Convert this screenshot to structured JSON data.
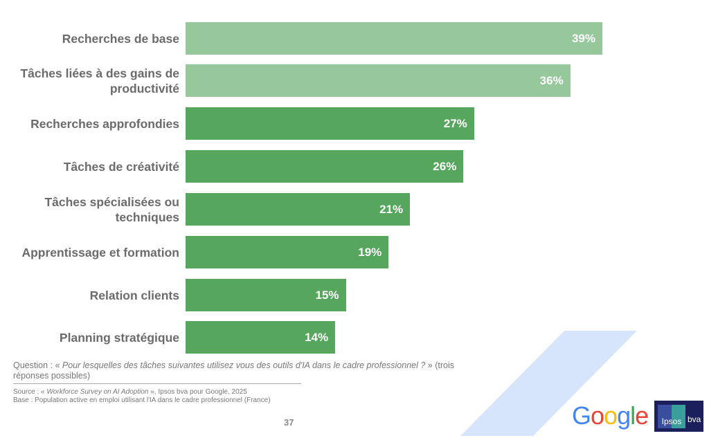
{
  "chart_data": {
    "type": "bar",
    "orientation": "horizontal",
    "categories": [
      "Recherches de base",
      "Tâches liées à des gains de productivité",
      "Recherches approfondies",
      "Tâches de créativité",
      "Tâches spécialisées ou techniques",
      "Apprentissage et formation",
      "Relation clients",
      "Planning stratégique"
    ],
    "values": [
      39,
      36,
      27,
      26,
      21,
      19,
      15,
      14
    ],
    "labels": [
      "39%",
      "36%",
      "27%",
      "26%",
      "21%",
      "19%",
      "15%",
      "14%"
    ],
    "colors": [
      "#97c89b",
      "#97c89b",
      "#57a65d",
      "#57a65d",
      "#57a65d",
      "#57a65d",
      "#57a65d",
      "#57a65d"
    ],
    "xlim": [
      0,
      45
    ],
    "grid": false
  },
  "footer": {
    "question_prefix": "Question : « ",
    "question_italic": "Pour lesquelles des tâches suivantes utilisez vous des outils d'IA dans le cadre professionnel ?",
    "question_suffix": " » (trois réponses possibles)",
    "source_prefix": "Source : « ",
    "source_italic": "Workforce Survey on AI Adoption",
    "source_suffix": " », Ipsos bva pour Google, 2025",
    "base": "Base : Population active en emploi utilisant l'IA dans le cadre professionnel (France)",
    "page_number": "37"
  },
  "logos": {
    "google": "Google",
    "ipsos": "Ipsos",
    "bva": "bva"
  }
}
